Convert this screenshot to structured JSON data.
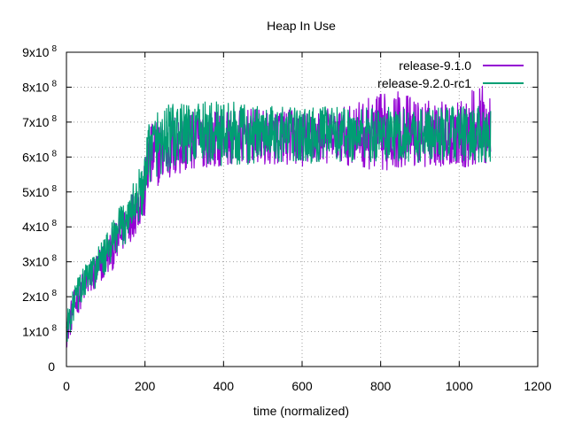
{
  "chart_data": {
    "type": "line",
    "title": "Heap In Use",
    "xlabel": "time (normalized)",
    "ylabel": "",
    "xlim": [
      0,
      1200
    ],
    "ylim": [
      0,
      900000000
    ],
    "x_ticks": [
      0,
      200,
      400,
      600,
      800,
      1000,
      1200
    ],
    "x_tick_labels": [
      "0",
      "200",
      "400",
      "600",
      "800",
      "1000",
      "1200"
    ],
    "y_ticks": [
      0,
      100000000,
      200000000,
      300000000,
      400000000,
      500000000,
      600000000,
      700000000,
      800000000,
      900000000
    ],
    "y_tick_labels": [
      {
        "mantissa": "0",
        "exponent": ""
      },
      {
        "mantissa": "1x10",
        "exponent": "8"
      },
      {
        "mantissa": "2x10",
        "exponent": "8"
      },
      {
        "mantissa": "3x10",
        "exponent": "8"
      },
      {
        "mantissa": "4x10",
        "exponent": "8"
      },
      {
        "mantissa": "5x10",
        "exponent": "8"
      },
      {
        "mantissa": "6x10",
        "exponent": "8"
      },
      {
        "mantissa": "7x10",
        "exponent": "8"
      },
      {
        "mantissa": "8x10",
        "exponent": "8"
      },
      {
        "mantissa": "9x10",
        "exponent": "8"
      }
    ],
    "grid": true,
    "legend_position": "top-right",
    "series": [
      {
        "name": "release-9.1.0",
        "color": "#9400d3",
        "x": [
          0,
          25,
          50,
          75,
          100,
          125,
          150,
          175,
          200,
          210,
          225,
          250,
          275,
          300,
          350,
          400,
          450,
          500,
          550,
          600,
          650,
          700,
          750,
          800,
          850,
          900,
          950,
          1000,
          1050,
          1080
        ],
        "y": [
          100000000,
          190000000,
          240000000,
          270000000,
          310000000,
          350000000,
          400000000,
          450000000,
          500000000,
          590000000,
          610000000,
          620000000,
          630000000,
          640000000,
          650000000,
          655000000,
          660000000,
          655000000,
          660000000,
          650000000,
          660000000,
          660000000,
          665000000,
          670000000,
          680000000,
          665000000,
          670000000,
          665000000,
          690000000,
          680000000
        ],
        "noise": [
          30000000,
          30000000,
          30000000,
          35000000,
          35000000,
          40000000,
          40000000,
          45000000,
          50000000,
          60000000,
          60000000,
          60000000,
          60000000,
          55000000,
          50000000,
          50000000,
          50000000,
          50000000,
          50000000,
          50000000,
          50000000,
          50000000,
          60000000,
          70000000,
          70000000,
          60000000,
          60000000,
          60000000,
          75000000,
          70000000
        ]
      },
      {
        "name": "release-9.2.0-rc1",
        "color": "#009e73",
        "x": [
          0,
          25,
          50,
          75,
          100,
          125,
          150,
          175,
          200,
          210,
          225,
          250,
          275,
          300,
          350,
          400,
          450,
          500,
          550,
          600,
          650,
          700,
          750,
          800,
          850,
          900,
          950,
          1000,
          1050,
          1080
        ],
        "y": [
          110000000,
          200000000,
          250000000,
          280000000,
          320000000,
          370000000,
          420000000,
          470000000,
          520000000,
          620000000,
          640000000,
          650000000,
          660000000,
          665000000,
          670000000,
          670000000,
          665000000,
          665000000,
          665000000,
          660000000,
          665000000,
          665000000,
          665000000,
          665000000,
          665000000,
          665000000,
          665000000,
          665000000,
          665000000,
          665000000
        ],
        "noise": [
          30000000,
          30000000,
          30000000,
          35000000,
          35000000,
          40000000,
          45000000,
          45000000,
          50000000,
          60000000,
          60000000,
          65000000,
          60000000,
          55000000,
          55000000,
          60000000,
          55000000,
          50000000,
          50000000,
          50000000,
          50000000,
          50000000,
          50000000,
          50000000,
          50000000,
          50000000,
          50000000,
          50000000,
          50000000,
          50000000
        ]
      }
    ]
  }
}
